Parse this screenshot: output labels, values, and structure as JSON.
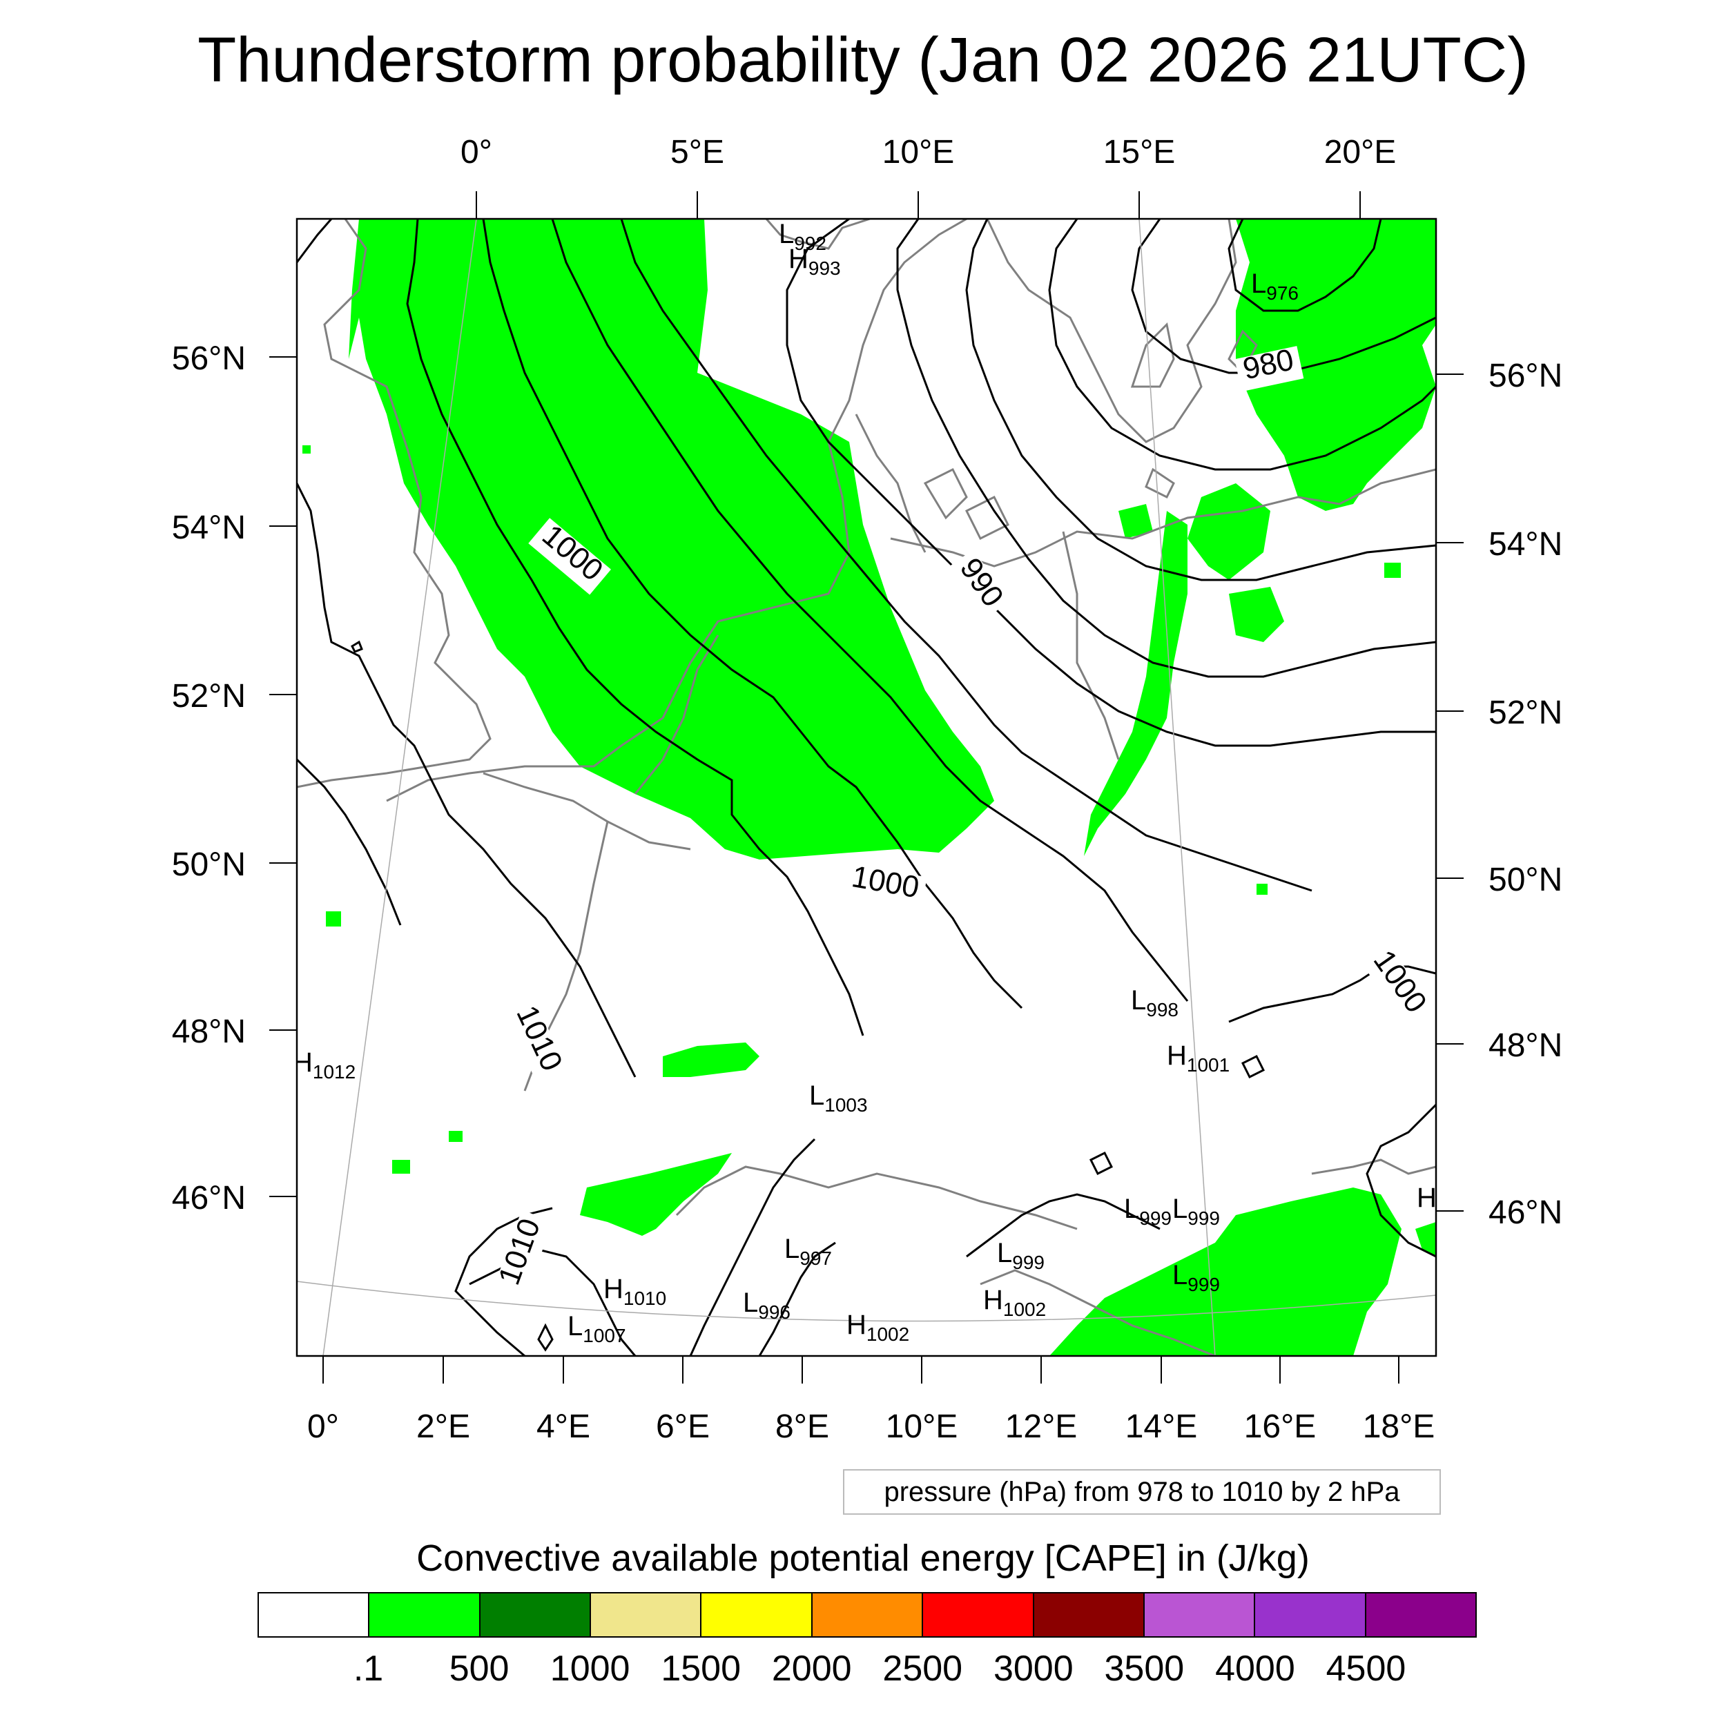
{
  "title": "Thunderstorm probability (Jan 02 2026 21UTC)",
  "map": {
    "top_lon_labels": [
      "0°",
      "5°E",
      "10°E",
      "15°E",
      "20°E"
    ],
    "bottom_lon_labels": [
      "0°",
      "2°E",
      "4°E",
      "6°E",
      "8°E",
      "10°E",
      "12°E",
      "14°E",
      "16°E",
      "18°E"
    ],
    "left_lat_labels": [
      "56°N",
      "54°N",
      "52°N",
      "50°N",
      "48°N",
      "46°N"
    ],
    "right_lat_labels": [
      "56°N",
      "54°N",
      "52°N",
      "50°N",
      "48°N",
      "46°N"
    ],
    "contour_labels": [
      {
        "text": "1000"
      },
      {
        "text": "990"
      },
      {
        "text": "980"
      },
      {
        "text": "1000"
      },
      {
        "text": "1010"
      },
      {
        "text": "1010"
      },
      {
        "text": "1000"
      }
    ],
    "pressure_centers": [
      {
        "kind": "L",
        "value": "992"
      },
      {
        "kind": "H",
        "value": "993"
      },
      {
        "kind": "L",
        "value": "976"
      },
      {
        "kind": "L",
        "value": "998"
      },
      {
        "kind": "H",
        "value": "1001"
      },
      {
        "kind": "H",
        "value": "1012"
      },
      {
        "kind": "L",
        "value": "1003"
      },
      {
        "kind": "L",
        "value": "997"
      },
      {
        "kind": "H",
        "value": "1010"
      },
      {
        "kind": "L",
        "value": "996"
      },
      {
        "kind": "L",
        "value": "1007"
      },
      {
        "kind": "H",
        "value": "1002"
      },
      {
        "kind": "L",
        "value": "999"
      },
      {
        "kind": "H",
        "value": "1002"
      },
      {
        "kind": "L",
        "value": "999"
      },
      {
        "kind": "L",
        "value": "999"
      },
      {
        "kind": "L",
        "value": "999"
      },
      {
        "kind": "H",
        "value": ""
      }
    ]
  },
  "pressure_legend": "pressure (hPa) from 978 to 1010 by 2 hPa",
  "colorbar": {
    "title": "Convective available potential energy [CAPE] in (J/kg)",
    "colors": [
      "#ffffff",
      "#00ff00",
      "#007f00",
      "#f0e68c",
      "#ffff00",
      "#ff8c00",
      "#ff0000",
      "#8b0000",
      "#ba55d3",
      "#9932cc",
      "#8b008b"
    ],
    "labels": [
      ".1",
      "500",
      "1000",
      "1500",
      "2000",
      "2500",
      "3000",
      "3500",
      "4000",
      "4500"
    ]
  }
}
